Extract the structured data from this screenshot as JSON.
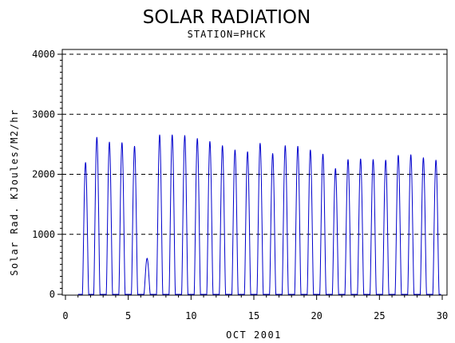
{
  "chart_data": {
    "type": "line",
    "title": "SOLAR RADIATION",
    "subtitle": "STATION=PHCK",
    "xlabel": "OCT 2001",
    "ylabel": "Solar Rad. KJoules/M2/hr",
    "xlim": [
      0,
      30
    ],
    "ylim": [
      0,
      4000
    ],
    "x_ticks": [
      0,
      5,
      10,
      15,
      20,
      25,
      30
    ],
    "y_ticks": [
      0,
      1000,
      2000,
      3000,
      4000
    ],
    "grid": "horizontal dashed",
    "line_color": "#0000cc",
    "series": [
      {
        "daily_peaks": [
          {
            "day": 1.6,
            "peak": 2200
          },
          {
            "day": 2.5,
            "peak": 2620
          },
          {
            "day": 3.5,
            "peak": 2540
          },
          {
            "day": 4.5,
            "peak": 2530
          },
          {
            "day": 5.5,
            "peak": 2470
          },
          {
            "day": 6.5,
            "peak": 600
          },
          {
            "day": 7.5,
            "peak": 2660
          },
          {
            "day": 8.5,
            "peak": 2660
          },
          {
            "day": 9.5,
            "peak": 2650
          },
          {
            "day": 10.5,
            "peak": 2600
          },
          {
            "day": 11.5,
            "peak": 2550
          },
          {
            "day": 12.5,
            "peak": 2480
          },
          {
            "day": 13.5,
            "peak": 2410
          },
          {
            "day": 14.5,
            "peak": 2380
          },
          {
            "day": 15.5,
            "peak": 2520
          },
          {
            "day": 16.5,
            "peak": 2350
          },
          {
            "day": 17.5,
            "peak": 2480
          },
          {
            "day": 18.5,
            "peak": 2470
          },
          {
            "day": 19.5,
            "peak": 2410
          },
          {
            "day": 20.5,
            "peak": 2340
          },
          {
            "day": 21.5,
            "peak": 2100
          },
          {
            "day": 22.5,
            "peak": 2250
          },
          {
            "day": 23.5,
            "peak": 2260
          },
          {
            "day": 24.5,
            "peak": 2250
          },
          {
            "day": 25.5,
            "peak": 2240
          },
          {
            "day": 26.5,
            "peak": 2320
          },
          {
            "day": 27.5,
            "peak": 2330
          },
          {
            "day": 28.5,
            "peak": 2280
          },
          {
            "day": 29.5,
            "peak": 2240
          }
        ]
      }
    ]
  }
}
